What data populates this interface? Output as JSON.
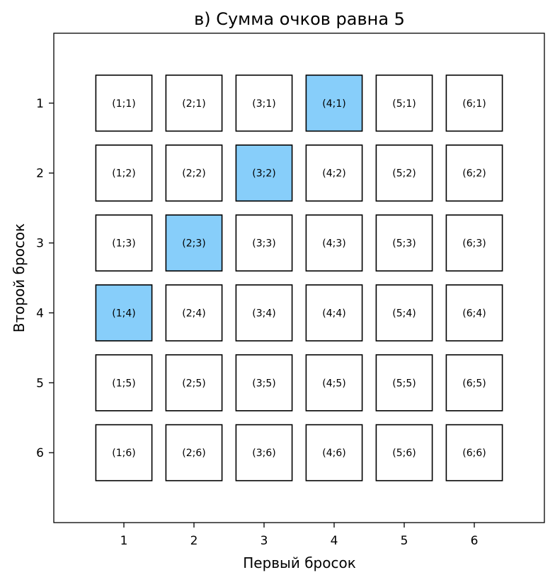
{
  "chart_data": {
    "type": "heatmap",
    "title": "в) Сумма очков равна 5",
    "xlabel": "Первый бросок",
    "ylabel": "Второй бросок",
    "x_ticks": [
      1,
      2,
      3,
      4,
      5,
      6
    ],
    "y_ticks": [
      1,
      2,
      3,
      4,
      5,
      6
    ],
    "xlim": [
      0,
      7
    ],
    "ylim": [
      7,
      0
    ],
    "y_inverted": true,
    "grid": false,
    "highlight_color": "#87CEFA",
    "default_color": "#FFFFFF",
    "cells": [
      {
        "x": 1,
        "y": 1,
        "label": "(1;1)",
        "highlight": false
      },
      {
        "x": 2,
        "y": 1,
        "label": "(2;1)",
        "highlight": false
      },
      {
        "x": 3,
        "y": 1,
        "label": "(3;1)",
        "highlight": false
      },
      {
        "x": 4,
        "y": 1,
        "label": "(4;1)",
        "highlight": true
      },
      {
        "x": 5,
        "y": 1,
        "label": "(5;1)",
        "highlight": false
      },
      {
        "x": 6,
        "y": 1,
        "label": "(6;1)",
        "highlight": false
      },
      {
        "x": 1,
        "y": 2,
        "label": "(1;2)",
        "highlight": false
      },
      {
        "x": 2,
        "y": 2,
        "label": "(2;2)",
        "highlight": false
      },
      {
        "x": 3,
        "y": 2,
        "label": "(3;2)",
        "highlight": true
      },
      {
        "x": 4,
        "y": 2,
        "label": "(4;2)",
        "highlight": false
      },
      {
        "x": 5,
        "y": 2,
        "label": "(5;2)",
        "highlight": false
      },
      {
        "x": 6,
        "y": 2,
        "label": "(6;2)",
        "highlight": false
      },
      {
        "x": 1,
        "y": 3,
        "label": "(1;3)",
        "highlight": false
      },
      {
        "x": 2,
        "y": 3,
        "label": "(2;3)",
        "highlight": true
      },
      {
        "x": 3,
        "y": 3,
        "label": "(3;3)",
        "highlight": false
      },
      {
        "x": 4,
        "y": 3,
        "label": "(4;3)",
        "highlight": false
      },
      {
        "x": 5,
        "y": 3,
        "label": "(5;3)",
        "highlight": false
      },
      {
        "x": 6,
        "y": 3,
        "label": "(6;3)",
        "highlight": false
      },
      {
        "x": 1,
        "y": 4,
        "label": "(1;4)",
        "highlight": true
      },
      {
        "x": 2,
        "y": 4,
        "label": "(2;4)",
        "highlight": false
      },
      {
        "x": 3,
        "y": 4,
        "label": "(3;4)",
        "highlight": false
      },
      {
        "x": 4,
        "y": 4,
        "label": "(4;4)",
        "highlight": false
      },
      {
        "x": 5,
        "y": 4,
        "label": "(5;4)",
        "highlight": false
      },
      {
        "x": 6,
        "y": 4,
        "label": "(6;4)",
        "highlight": false
      },
      {
        "x": 1,
        "y": 5,
        "label": "(1;5)",
        "highlight": false
      },
      {
        "x": 2,
        "y": 5,
        "label": "(2;5)",
        "highlight": false
      },
      {
        "x": 3,
        "y": 5,
        "label": "(3;5)",
        "highlight": false
      },
      {
        "x": 4,
        "y": 5,
        "label": "(4;5)",
        "highlight": false
      },
      {
        "x": 5,
        "y": 5,
        "label": "(5;5)",
        "highlight": false
      },
      {
        "x": 6,
        "y": 5,
        "label": "(6;5)",
        "highlight": false
      },
      {
        "x": 1,
        "y": 6,
        "label": "(1;6)",
        "highlight": false
      },
      {
        "x": 2,
        "y": 6,
        "label": "(2;6)",
        "highlight": false
      },
      {
        "x": 3,
        "y": 6,
        "label": "(3;6)",
        "highlight": false
      },
      {
        "x": 4,
        "y": 6,
        "label": "(4;6)",
        "highlight": false
      },
      {
        "x": 5,
        "y": 6,
        "label": "(5;6)",
        "highlight": false
      },
      {
        "x": 6,
        "y": 6,
        "label": "(6;6)",
        "highlight": false
      }
    ]
  }
}
